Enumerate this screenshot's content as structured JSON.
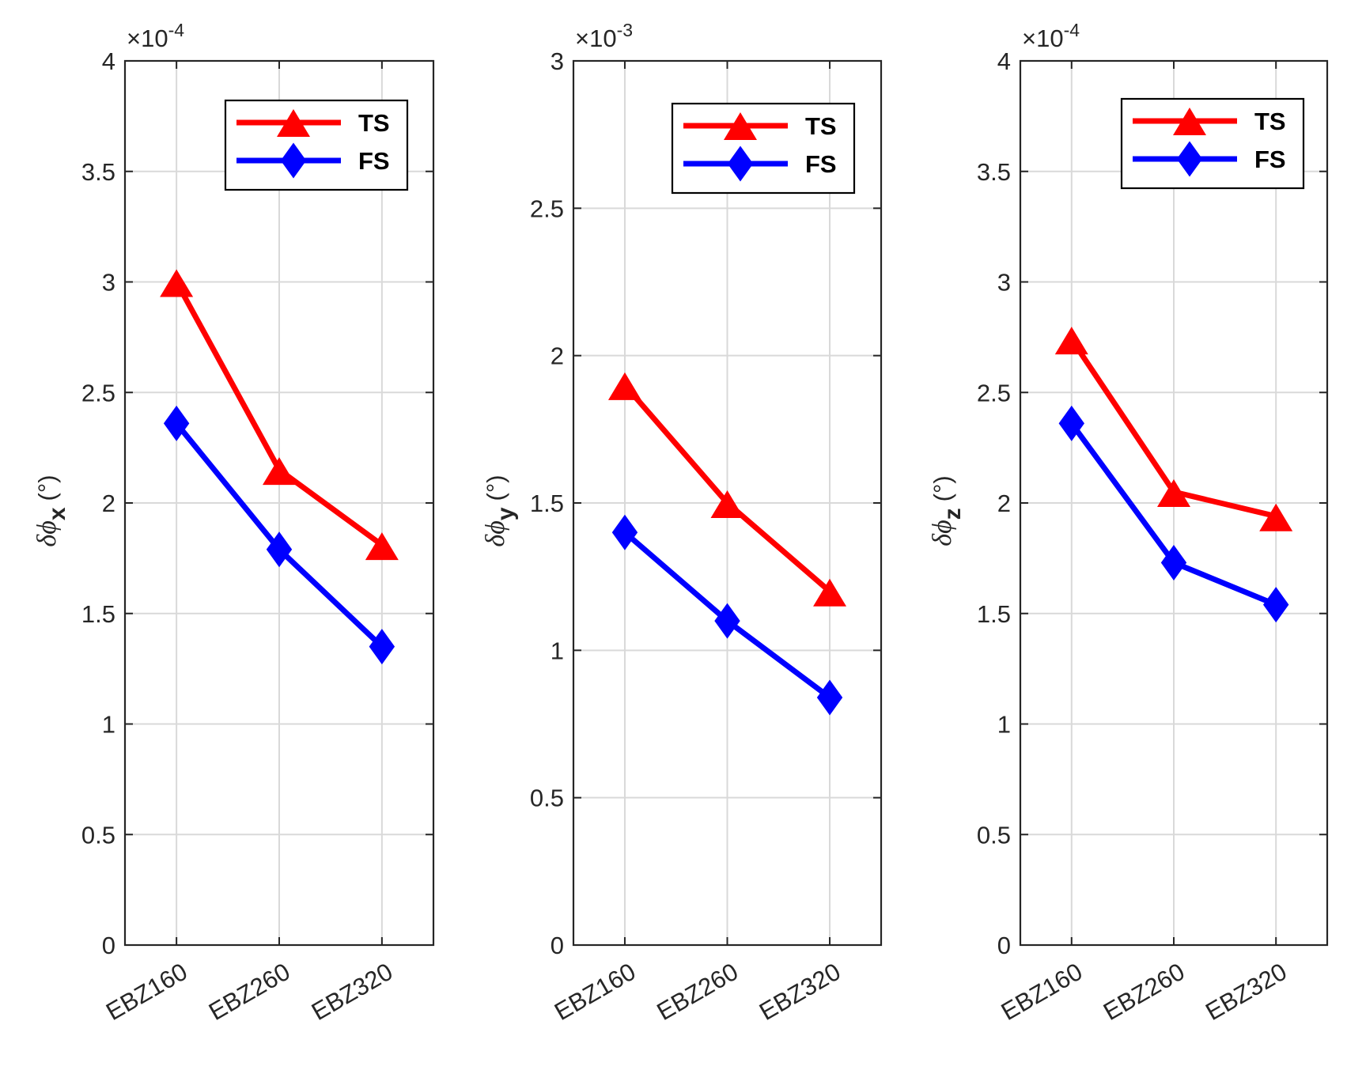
{
  "colors": {
    "ts": "#ff0000",
    "fs": "#0000ff",
    "axis": "#262626",
    "grid": "#d9d9d9"
  },
  "chart_data": [
    {
      "type": "line",
      "categories": [
        "EBZ160",
        "EBZ260",
        "EBZ320"
      ],
      "series": [
        {
          "name": "TS",
          "marker": "triangle",
          "values": [
            3.0,
            2.15,
            1.81
          ]
        },
        {
          "name": "FS",
          "marker": "diamond",
          "values": [
            2.36,
            1.79,
            1.35
          ]
        }
      ],
      "exponent_label": "×10",
      "exponent_power": "-4",
      "ylabel": {
        "symbol": "δϕ",
        "subscript": "x",
        "unit": "(°)"
      },
      "ylim": [
        0,
        4
      ],
      "yticks": [
        0,
        0.5,
        1,
        1.5,
        2,
        2.5,
        3,
        3.5,
        4
      ],
      "ytick_labels": [
        "0",
        "0.5",
        "1",
        "1.5",
        "2",
        "2.5",
        "3",
        "3.5",
        "4"
      ],
      "grid": true,
      "legend_placement": "top-right"
    },
    {
      "type": "line",
      "categories": [
        "EBZ160",
        "EBZ260",
        "EBZ320"
      ],
      "series": [
        {
          "name": "TS",
          "marker": "triangle",
          "values": [
            1.9,
            1.5,
            1.2
          ]
        },
        {
          "name": "FS",
          "marker": "diamond",
          "values": [
            1.4,
            1.1,
            0.84
          ]
        }
      ],
      "exponent_label": "×10",
      "exponent_power": "-3",
      "ylabel": {
        "symbol": "δϕ",
        "subscript": "y",
        "unit": "(°)"
      },
      "ylim": [
        0,
        3
      ],
      "yticks": [
        0,
        0.5,
        1,
        1.5,
        2,
        2.5,
        3
      ],
      "ytick_labels": [
        "0",
        "0.5",
        "1",
        "1.5",
        "2",
        "2.5",
        "3"
      ],
      "grid": true,
      "legend_placement": "top-right"
    },
    {
      "type": "line",
      "categories": [
        "EBZ160",
        "EBZ260",
        "EBZ320"
      ],
      "series": [
        {
          "name": "TS",
          "marker": "triangle",
          "values": [
            2.74,
            2.05,
            1.94
          ]
        },
        {
          "name": "FS",
          "marker": "diamond",
          "values": [
            2.36,
            1.73,
            1.54
          ]
        }
      ],
      "exponent_label": "×10",
      "exponent_power": "-4",
      "ylabel": {
        "symbol": "δϕ",
        "subscript": "z",
        "unit": "(°)"
      },
      "ylim": [
        0,
        4
      ],
      "yticks": [
        0,
        0.5,
        1,
        1.5,
        2,
        2.5,
        3,
        3.5,
        4
      ],
      "ytick_labels": [
        "0",
        "0.5",
        "1",
        "1.5",
        "2",
        "2.5",
        "3",
        "3.5",
        "4"
      ],
      "grid": true,
      "legend_placement": "top-right"
    }
  ]
}
